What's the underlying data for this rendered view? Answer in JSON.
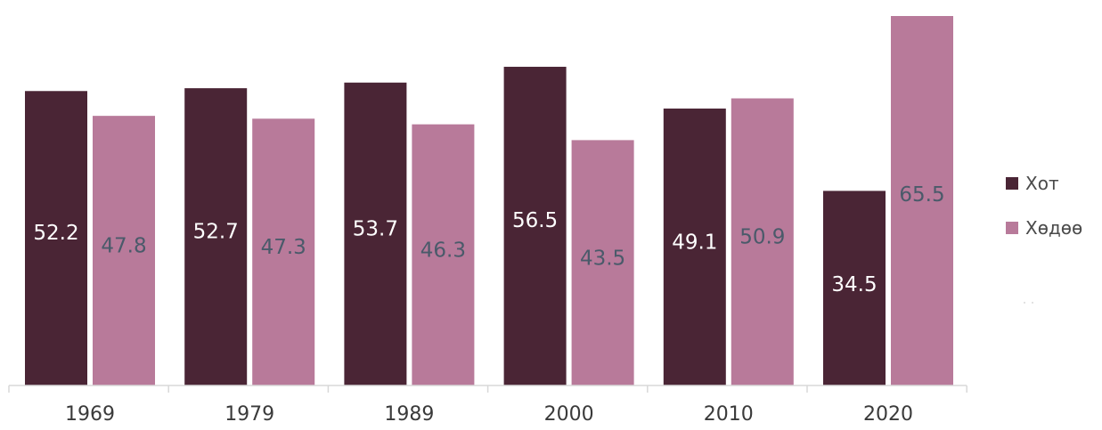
{
  "chart_data": {
    "type": "bar",
    "categories": [
      "1969",
      "1979",
      "1989",
      "2000",
      "2010",
      "2020"
    ],
    "series": [
      {
        "name": "Хот",
        "color": "#4a2535",
        "label_color": "#ffffff",
        "values": [
          52.2,
          52.7,
          53.7,
          56.5,
          49.1,
          34.5
        ]
      },
      {
        "name": "Хөдөө",
        "color": "#b87a9a",
        "label_color": "#4a5a6a",
        "values": [
          47.8,
          47.3,
          46.3,
          43.5,
          50.9,
          65.5
        ]
      }
    ],
    "value_labels": [
      [
        "52.2",
        "52.7",
        "53.7",
        "56.5",
        "49.1",
        "34.5"
      ],
      [
        "47.8",
        "47.3",
        "46.3",
        "43.5",
        "50.9",
        "65.5"
      ]
    ],
    "legend": {
      "position": "right",
      "items": [
        "Хот",
        "Хөдөө"
      ]
    },
    "ylim": [
      0,
      65.5
    ],
    "grid": false
  }
}
